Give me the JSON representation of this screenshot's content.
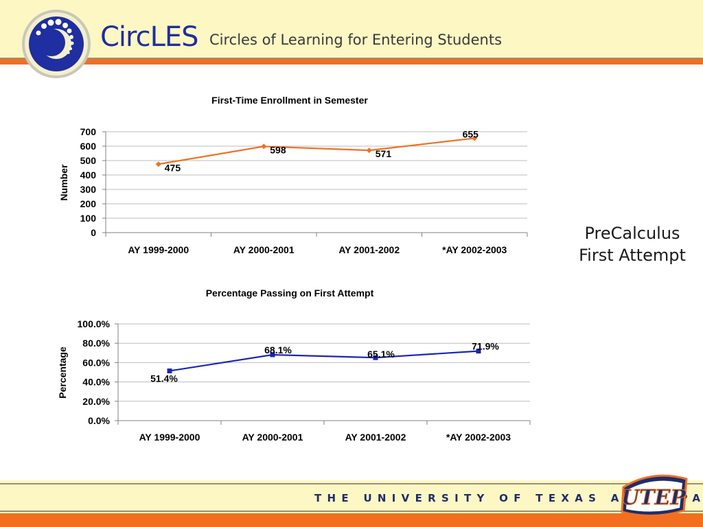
{
  "header": {
    "brand": "CircLES",
    "tagline": "Circles of Learning for Entering Students"
  },
  "side_title": {
    "line1": "PreCalculus",
    "line2": "First Attempt"
  },
  "footer": {
    "university": "THE UNIVERSITY OF TEXAS AT EL PASO",
    "logo_text": "UTEP"
  },
  "colors": {
    "orange": "#f26f1f",
    "navy": "#1f2ea0",
    "series1": "#f07020",
    "series2": "#1a24b8",
    "header_bg": "#fdf7c4"
  },
  "chart_data": [
    {
      "type": "line",
      "title": "First-Time Enrollment in Semester",
      "xlabel": "",
      "ylabel": "Number",
      "categories": [
        "AY 1999-2000",
        "AY 2000-2001",
        "AY 2001-2002",
        "*AY 2002-2003"
      ],
      "series": [
        {
          "values": [
            475,
            598,
            571,
            655
          ]
        }
      ],
      "data_labels": [
        "475",
        "598",
        "571",
        "655"
      ],
      "ylim": [
        0,
        700
      ],
      "yticks": [
        0,
        100,
        200,
        300,
        400,
        500,
        600,
        700
      ],
      "ytick_labels": [
        "0",
        "100",
        "200",
        "300",
        "400",
        "500",
        "600",
        "700"
      ],
      "marker": "diamond",
      "grid": true,
      "legend": "none"
    },
    {
      "type": "line",
      "title": "Percentage Passing on First Attempt",
      "xlabel": "",
      "ylabel": "Percentage",
      "categories": [
        "AY 1999-2000",
        "AY 2000-2001",
        "AY 2001-2002",
        "*AY 2002-2003"
      ],
      "series": [
        {
          "values": [
            51.4,
            68.1,
            65.1,
            71.9
          ]
        }
      ],
      "data_labels": [
        "51.4%",
        "68.1%",
        "65.1%",
        "71.9%"
      ],
      "ylim": [
        0,
        100
      ],
      "yticks": [
        0,
        20,
        40,
        60,
        80,
        100
      ],
      "ytick_labels": [
        "0.0%",
        "20.0%",
        "40.0%",
        "60.0%",
        "80.0%",
        "100.0%"
      ],
      "marker": "square",
      "grid": true,
      "legend": "none"
    }
  ]
}
